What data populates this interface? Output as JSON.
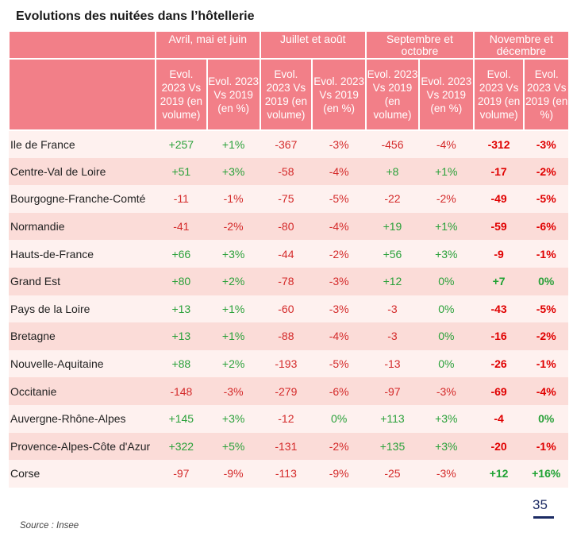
{
  "title": "Evolutions des nuitées dans l’hôtellerie",
  "periods": [
    "Avril, mai et juin",
    "Juillet et août",
    "Septembre et octobre",
    "Novembre et décembre"
  ],
  "subheaders": [
    "Evol. 2023 Vs 2019 (en volume)",
    "Evol. 2023 Vs 2019 (en %)"
  ],
  "rows": [
    {
      "region": "Ile de France",
      "v": [
        "+257",
        "+1%",
        "-367",
        "-3%",
        "-456",
        "-4%",
        "-312",
        "-3%"
      ]
    },
    {
      "region": "Centre-Val de Loire",
      "v": [
        "+51",
        "+3%",
        "-58",
        "-4%",
        "+8",
        "+1%",
        "-17",
        "-2%"
      ]
    },
    {
      "region": "Bourgogne-Franche-Comté",
      "v": [
        "-11",
        "-1%",
        "-75",
        "-5%",
        "-22",
        "-2%",
        "-49",
        "-5%"
      ]
    },
    {
      "region": "Normandie",
      "v": [
        "-41",
        "-2%",
        "-80",
        "-4%",
        "+19",
        "+1%",
        "-59",
        "-6%"
      ]
    },
    {
      "region": "Hauts-de-France",
      "v": [
        "+66",
        "+3%",
        "-44",
        "-2%",
        "+56",
        "+3%",
        "-9",
        "-1%"
      ]
    },
    {
      "region": "Grand Est",
      "v": [
        "+80",
        "+2%",
        "-78",
        "-3%",
        "+12",
        "0%",
        "+7",
        "0%"
      ]
    },
    {
      "region": "Pays de la Loire",
      "v": [
        "+13",
        "+1%",
        "-60",
        "-3%",
        "-3",
        "0%",
        "-43",
        "-5%"
      ]
    },
    {
      "region": "Bretagne",
      "v": [
        "+13",
        "+1%",
        "-88",
        "-4%",
        "-3",
        "0%",
        "-16",
        "-2%"
      ]
    },
    {
      "region": "Nouvelle-Aquitaine",
      "v": [
        "+88",
        "+2%",
        "-193",
        "-5%",
        "-13",
        "0%",
        "-26",
        "-1%"
      ]
    },
    {
      "region": "Occitanie",
      "v": [
        "-148",
        "-3%",
        "-279",
        "-6%",
        "-97",
        "-3%",
        "-69",
        "-4%"
      ]
    },
    {
      "region": "Auvergne-Rhône-Alpes",
      "v": [
        "+145",
        "+3%",
        "-12",
        "0%",
        "+113",
        "+3%",
        "-4",
        "0%"
      ]
    },
    {
      "region": "Provence-Alpes-Côte d'Azur",
      "v": [
        "+322",
        "+5%",
        "-131",
        "-2%",
        "+135",
        "+3%",
        "-20",
        "-1%"
      ]
    },
    {
      "region": "Corse",
      "v": [
        "-97",
        "-9%",
        "-113",
        "-9%",
        "-25",
        "-3%",
        "+12",
        "+16%"
      ]
    }
  ],
  "page_number": "35",
  "source": "Source : Insee",
  "colors": {
    "header": "#f27f88",
    "row_light": "#fef1ef",
    "row_dark": "#fbdcd8",
    "positive": "#2aa13a",
    "negative": "#d42a2a",
    "page_accent": "#1b2a63"
  }
}
